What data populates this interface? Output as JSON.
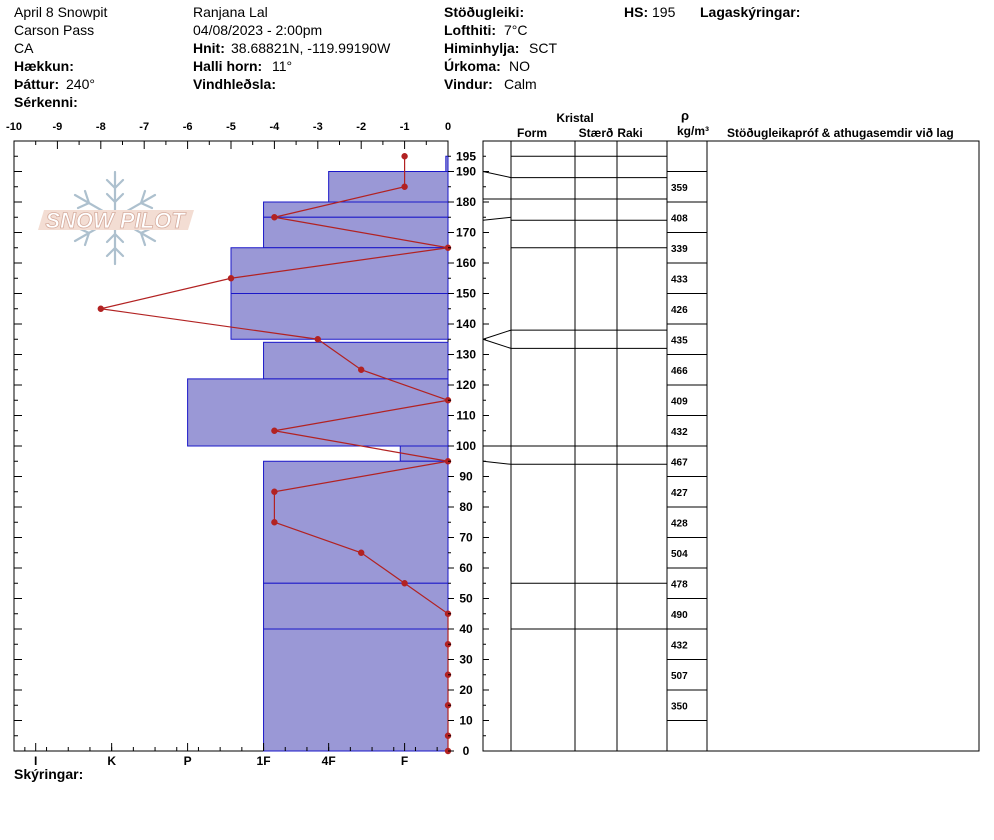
{
  "header": {
    "pit_name": "April 8 Snowpit",
    "location": "Carson Pass",
    "state": "CA",
    "elevation_label": "Hækkun:",
    "aspect_label": "Þáttur:",
    "aspect_value": "240°",
    "features_label": "Sérkenni:",
    "observer": "Ranjana Lal",
    "datetime": "04/08/2023 - 2:00pm",
    "coords_label": "Hnit:",
    "coords_value": "38.68821N, -119.99190W",
    "slope_label": "Halli horn:",
    "slope_value": "11°",
    "wind_loading_label": "Vindhleðsla:",
    "stability_label": "Stöðugleiki:",
    "air_temp_label": "Lofthiti:",
    "air_temp_value": "7°C",
    "sky_label": "Himinhylja:",
    "sky_value": "SCT",
    "precip_label": "Úrkoma:",
    "precip_value": "NO",
    "wind_label": "Vindur:",
    "wind_value": "Calm",
    "hs_label": "HS:",
    "hs_value": "195",
    "layer_notes_label": "Lagaskýringar:"
  },
  "footer": {
    "notes_label": "Skýringar:"
  },
  "table": {
    "crystal_label": "Kristal",
    "form_label": "Form",
    "size_label": "Stærð",
    "moisture_label": "Raki",
    "rho_label": "ρ",
    "density_unit": "kg/m³",
    "tests_label": "Stöðugleikapróf & athugasemdir við lag"
  },
  "colors": {
    "hardness_fill": "#9a98d6",
    "hardness_line": "#1a17c8",
    "temp_line": "#b22222"
  },
  "chart_data": {
    "type": "snow_profile",
    "temperature_axis": {
      "ticks": [
        -10,
        -9,
        -8,
        -7,
        -6,
        -5,
        -4,
        -3,
        -2,
        -1,
        0
      ],
      "range": [
        -10,
        0
      ]
    },
    "height_axis": {
      "ticks": [
        0,
        10,
        20,
        30,
        40,
        50,
        60,
        70,
        80,
        90,
        100,
        110,
        120,
        130,
        140,
        150,
        160,
        170,
        180,
        190,
        195
      ],
      "range": [
        0,
        195
      ]
    },
    "hardness_axis": {
      "labels": [
        "I",
        "K",
        "P",
        "1F",
        "4F",
        "F"
      ],
      "positions": [
        -9.5,
        -7.75,
        -6,
        -4.25,
        -2.75,
        -1
      ]
    },
    "temperature_profile": [
      {
        "height": 195,
        "temp": -1
      },
      {
        "height": 185,
        "temp": -1
      },
      {
        "height": 175,
        "temp": -4
      },
      {
        "height": 165,
        "temp": 0
      },
      {
        "height": 155,
        "temp": -5
      },
      {
        "height": 145,
        "temp": -8
      },
      {
        "height": 135,
        "temp": -3
      },
      {
        "height": 125,
        "temp": -2
      },
      {
        "height": 115,
        "temp": 0
      },
      {
        "height": 105,
        "temp": -4
      },
      {
        "height": 95,
        "temp": 0
      },
      {
        "height": 85,
        "temp": -4
      },
      {
        "height": 75,
        "temp": -4
      },
      {
        "height": 65,
        "temp": -2
      },
      {
        "height": 55,
        "temp": -1
      },
      {
        "height": 45,
        "temp": 0
      },
      {
        "height": 35,
        "temp": 0
      },
      {
        "height": 25,
        "temp": 0
      },
      {
        "height": 15,
        "temp": 0
      },
      {
        "height": 5,
        "temp": 0
      },
      {
        "height": 0,
        "temp": 0
      }
    ],
    "hardness_layers": [
      {
        "top": 195,
        "bottom": 190,
        "hardness": -0.05
      },
      {
        "top": 190,
        "bottom": 180,
        "hardness": -2.75
      },
      {
        "top": 180,
        "bottom": 175,
        "hardness": -4.25
      },
      {
        "top": 175,
        "bottom": 165,
        "hardness": -4.25
      },
      {
        "top": 165,
        "bottom": 150,
        "hardness": -5
      },
      {
        "top": 150,
        "bottom": 135,
        "hardness": -5
      },
      {
        "top": 134,
        "bottom": 122,
        "hardness": -4.25
      },
      {
        "top": 122,
        "bottom": 100,
        "hardness": -6
      },
      {
        "top": 100,
        "bottom": 95,
        "hardness": -1.1
      },
      {
        "top": 95,
        "bottom": 55,
        "hardness": -4.25
      },
      {
        "top": 55,
        "bottom": 40,
        "hardness": -4.25
      },
      {
        "top": 40,
        "bottom": 0,
        "hardness": -4.25
      }
    ],
    "layer_boundaries": [
      195,
      188,
      181,
      174,
      165,
      138,
      132,
      100,
      94,
      55,
      40
    ],
    "density_samples": [
      {
        "height": 185,
        "value": 359
      },
      {
        "height": 175,
        "value": 408
      },
      {
        "height": 165,
        "value": 339
      },
      {
        "height": 155,
        "value": 433
      },
      {
        "height": 145,
        "value": 426
      },
      {
        "height": 135,
        "value": 435
      },
      {
        "height": 125,
        "value": 466
      },
      {
        "height": 115,
        "value": 409
      },
      {
        "height": 105,
        "value": 432
      },
      {
        "height": 95,
        "value": 467
      },
      {
        "height": 85,
        "value": 427
      },
      {
        "height": 75,
        "value": 428
      },
      {
        "height": 65,
        "value": 504
      },
      {
        "height": 55,
        "value": 478
      },
      {
        "height": 45,
        "value": 490
      },
      {
        "height": 35,
        "value": 432
      },
      {
        "height": 25,
        "value": 507
      },
      {
        "height": 15,
        "value": 350
      }
    ]
  }
}
